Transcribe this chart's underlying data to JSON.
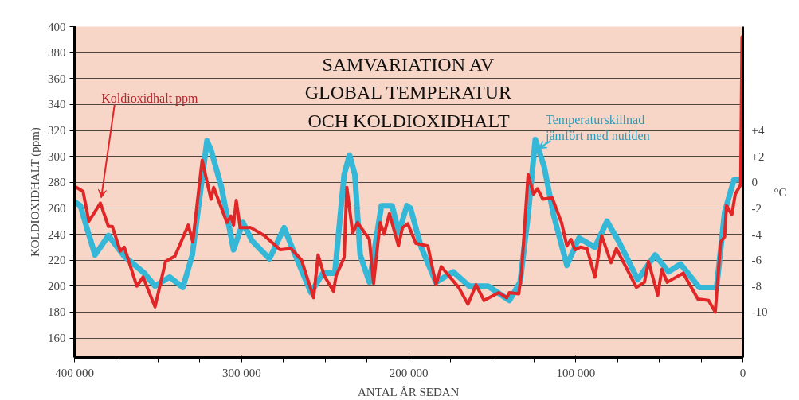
{
  "chart_data": {
    "type": "line",
    "title": "SAMVARIATION AV GLOBAL TEMPERATUR OCH KOLDIOXIDHALT",
    "xlabel": "ANTAL ÅR SEDAN",
    "ylabel": "KOLDIOXIDHALT (ppm)",
    "y2label": "°C",
    "xlim": [
      400000,
      0
    ],
    "ylim": [
      145,
      400
    ],
    "y2lim": [
      -13.5,
      12
    ],
    "xticks": [
      {
        "value": 400000,
        "label": "400 000"
      },
      {
        "value": 375000,
        "label": null
      },
      {
        "value": 350000,
        "label": null
      },
      {
        "value": 325000,
        "label": null
      },
      {
        "value": 300000,
        "label": "300 000"
      },
      {
        "value": 275000,
        "label": null
      },
      {
        "value": 250000,
        "label": null
      },
      {
        "value": 225000,
        "label": null
      },
      {
        "value": 200000,
        "label": "200 000"
      },
      {
        "value": 175000,
        "label": null
      },
      {
        "value": 150000,
        "label": null
      },
      {
        "value": 125000,
        "label": null
      },
      {
        "value": 100000,
        "label": "100 000"
      },
      {
        "value": 75000,
        "label": null
      },
      {
        "value": 50000,
        "label": null
      },
      {
        "value": 25000,
        "label": null
      },
      0
    ],
    "yticks": [
      160,
      180,
      200,
      220,
      240,
      260,
      280,
      300,
      320,
      340,
      360,
      380,
      400
    ],
    "y2ticks": [
      {
        "value": 4,
        "label": "+4"
      },
      {
        "value": 2,
        "label": "+2"
      },
      0,
      -2,
      -4,
      -6,
      -8,
      -10
    ],
    "grid": "y",
    "marker": "none",
    "line_style": "solid",
    "series": [
      {
        "name": "Temperaturskillnad jämfört med nutiden",
        "color": "#35b8d8",
        "axis": "y2",
        "x": [
          400000,
          396500,
          391700,
          387700,
          379700,
          370200,
          358200,
          351800,
          343100,
          335100,
          329500,
          320700,
          318300,
          312000,
          304800,
          299200,
          293800,
          283300,
          274500,
          268900,
          258500,
          251300,
          244200,
          238600,
          235400,
          232200,
          229000,
          223500,
          216300,
          209900,
          205900,
          201100,
          198900,
          192500,
          183700,
          173300,
          163700,
          152500,
          139700,
          133300,
          128500,
          124200,
          118900,
          113300,
          105300,
          98100,
          88500,
          81300,
          74100,
          62900,
          52500,
          44500,
          37300,
          26100,
          15700,
          10900,
          5300,
          500
        ],
        "values": [
          -1.5,
          -1.8,
          -3.9,
          -5.6,
          -4.1,
          -5.7,
          -7.0,
          -8.0,
          -7.3,
          -8.1,
          -5.6,
          3.2,
          2.5,
          -0.4,
          -5.2,
          -3.1,
          -4.5,
          -5.9,
          -3.5,
          -5.3,
          -8.5,
          -7.0,
          -7.0,
          0.6,
          2.1,
          0.6,
          -5.6,
          -7.7,
          -1.8,
          -1.8,
          -3.9,
          -1.8,
          -2.0,
          -5.0,
          -7.7,
          -6.9,
          -8.0,
          -8.0,
          -9.1,
          -7.7,
          -2.5,
          3.3,
          1.2,
          -2.5,
          -6.4,
          -4.3,
          -5.0,
          -3.0,
          -4.6,
          -7.5,
          -5.6,
          -6.9,
          -6.3,
          -8.1,
          -8.1,
          -2.3,
          0.2,
          0.2
        ]
      },
      {
        "name": "Koldioxidhalt ppm",
        "color": "#e02626",
        "x": [
          400000,
          394900,
          391400,
          384500,
          379700,
          377400,
          372600,
          370200,
          362700,
          359000,
          351800,
          345500,
          339900,
          331900,
          329200,
          323600,
          318300,
          316700,
          308800,
          306400,
          304800,
          303200,
          300800,
          294400,
          286400,
          276900,
          270500,
          264100,
          256900,
          254200,
          250500,
          245000,
          243400,
          238600,
          237000,
          233500,
          230600,
          223500,
          221000,
          217100,
          214700,
          211500,
          206100,
          203700,
          200500,
          195700,
          188500,
          183700,
          180500,
          170100,
          164500,
          159700,
          154900,
          146100,
          141300,
          139700,
          134100,
          132500,
          128500,
          125300,
          122900,
          119700,
          114100,
          108500,
          105300,
          102900,
          100500,
          97300,
          93300,
          88500,
          84500,
          78900,
          75700,
          63700,
          58900,
          56500,
          50900,
          48500,
          45300,
          35700,
          26900,
          20500,
          16500,
          13300,
          10900,
          9800,
          6600,
          4500,
          1300,
          500
        ],
        "values": [
          277,
          273,
          250,
          264,
          246,
          246,
          227,
          230,
          200,
          207,
          184,
          219,
          223,
          247,
          234,
          297,
          267,
          276,
          249,
          254,
          247,
          266,
          245,
          245,
          239,
          228,
          229,
          220,
          191,
          224,
          208,
          196,
          208,
          222,
          276,
          241,
          249,
          236,
          202,
          249,
          240,
          256,
          231,
          245,
          248,
          233,
          231,
          201,
          215,
          199,
          186,
          201,
          189,
          195,
          191,
          195,
          194,
          210,
          286,
          271,
          275,
          267,
          268,
          249,
          231,
          236,
          228,
          230,
          229,
          207,
          239,
          218,
          229,
          199,
          203,
          219,
          193,
          213,
          203,
          210,
          190,
          189,
          180,
          234,
          238,
          262,
          255,
          271,
          278,
          392
        ]
      }
    ]
  }
}
